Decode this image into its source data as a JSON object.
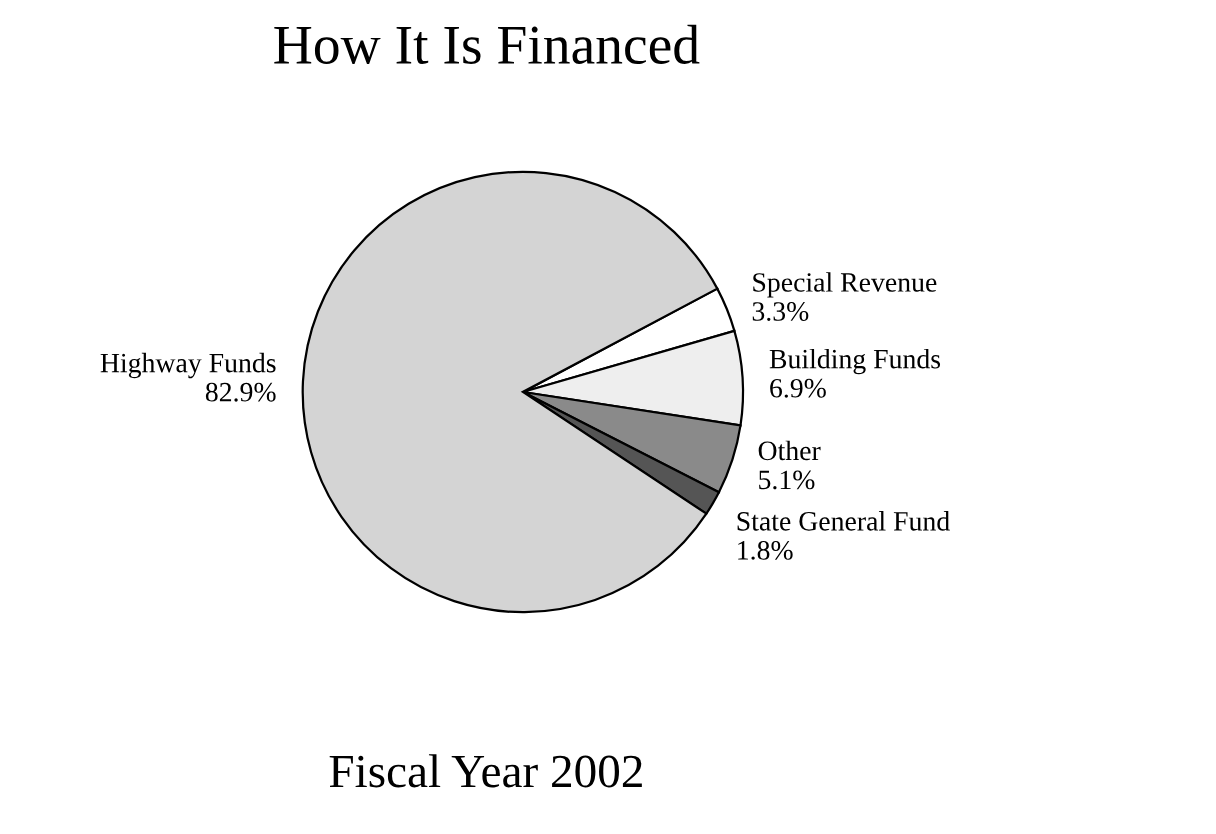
{
  "chart_data": {
    "type": "pie",
    "title": "How It Is Financed",
    "categories": [
      "Special Revenue",
      "Building Funds",
      "Other",
      "State General Fund",
      "Highway Funds"
    ],
    "values": [
      3.3,
      6.9,
      5.1,
      1.8,
      82.9
    ],
    "value_labels": [
      "3.3%",
      "6.9%",
      "5.1%",
      "1.8%",
      "82.9%"
    ],
    "colors": [
      "#ffffff",
      "#eeeeee",
      "#8a8a8a",
      "#555555",
      "#d4d4d4"
    ],
    "legend": false,
    "annotations": [
      "Fiscal Year 2002"
    ]
  }
}
